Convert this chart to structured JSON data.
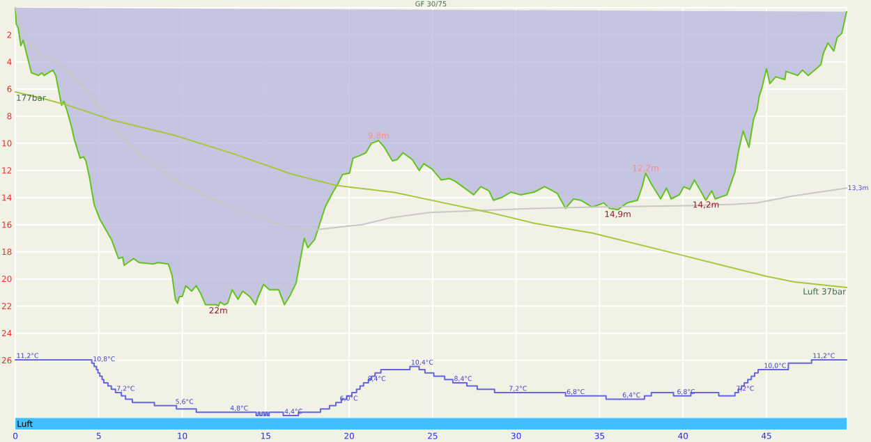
{
  "chart_data": [
    {
      "type": "line",
      "title": "GF 30/75",
      "xlim": [
        0,
        49.8
      ],
      "xticks": [
        0,
        5,
        10,
        15,
        20,
        25,
        30,
        35,
        40,
        45
      ],
      "ylim": [
        31.1,
        0
      ],
      "yticks": [
        2,
        4,
        6,
        8,
        10,
        12,
        14,
        16,
        18,
        20,
        22,
        24,
        26
      ],
      "grid": true,
      "series": [
        {
          "type": "area",
          "color": "#62c41a",
          "x": [
            0,
            0.05,
            0.17,
            0.33,
            0.47,
            0.82,
            0.96,
            1.38,
            1.59,
            1.72,
            2.25,
            2.42,
            2.77,
            2.91,
            3.12,
            3.39,
            3.53,
            3.88,
            4.09,
            4.23,
            4.44,
            4.72,
            5.06,
            5.2,
            5.76,
            6.18,
            6.43,
            6.52,
            7.08,
            7.43,
            8.26,
            8.54,
            9.17,
            9.38,
            9.59,
            9.72,
            9.82,
            10.0,
            10.21,
            10.56,
            10.84,
            11.11,
            11.39,
            11.67,
            12.02,
            12.16,
            12.27,
            12.51,
            12.72,
            12.99,
            13.34,
            13.62,
            14.04,
            14.39,
            14.52,
            14.87,
            15.22,
            15.78,
            16.12,
            16.47,
            16.82,
            17.31,
            17.52,
            17.93,
            18.56,
            18.98,
            19.32,
            19.6,
            20.02,
            20.23,
            20.65,
            21.0,
            21.34,
            21.76,
            22.11,
            22.59,
            22.87,
            23.22,
            23.78,
            24.19,
            24.47,
            24.96,
            25.51,
            26.0,
            26.35,
            26.91,
            27.46,
            27.88,
            28.37,
            28.64,
            29.13,
            29.69,
            30.25,
            31.08,
            31.71,
            32.19,
            32.47,
            32.96,
            33.44,
            33.86,
            34.56,
            35.25,
            35.6,
            36.09,
            36.64,
            37.27,
            37.55,
            37.76,
            38.1,
            38.66,
            39.01,
            39.29,
            39.77,
            40.05,
            40.4,
            40.68,
            41.37,
            41.72,
            41.93,
            42.63,
            43.11,
            43.32,
            43.6,
            43.95,
            44.23,
            44.44,
            44.57,
            44.71,
            44.92,
            45.0,
            45.2,
            45.55,
            46.1,
            46.17,
            46.87,
            47.15,
            47.5,
            47.98,
            48.26,
            48.4,
            48.68,
            49.03,
            49.24,
            49.51,
            49.8
          ],
          "values": [
            0,
            1.2,
            1.5,
            2.8,
            2.4,
            4.1,
            4.8,
            5.0,
            4.8,
            5.0,
            4.6,
            5.0,
            7.2,
            6.9,
            7.7,
            8.9,
            9.7,
            11.1,
            11.0,
            11.3,
            12.5,
            14.5,
            15.6,
            15.9,
            17.1,
            18.5,
            18.4,
            19.0,
            18.5,
            18.8,
            18.9,
            18.8,
            18.9,
            19.7,
            21.5,
            21.8,
            21.3,
            21.3,
            20.5,
            20.9,
            20.5,
            21.1,
            21.9,
            21.9,
            21.9,
            22,
            21.7,
            21.9,
            21.8,
            20.8,
            21.5,
            20.9,
            21.3,
            21.9,
            21.4,
            20.4,
            20.8,
            20.8,
            21.9,
            21.2,
            20.3,
            17.0,
            17.7,
            17.1,
            14.7,
            13.7,
            13.0,
            12.3,
            12.2,
            11.1,
            10.9,
            10.7,
            10.0,
            9.8,
            10.3,
            11.3,
            11.2,
            10.7,
            11.2,
            12.0,
            11.5,
            11.9,
            12.7,
            12.6,
            12.8,
            13.3,
            13.8,
            13.2,
            13.5,
            14.2,
            14.0,
            13.6,
            13.8,
            13.6,
            13.2,
            13.5,
            13.7,
            14.8,
            14.1,
            14.2,
            14.7,
            14.4,
            14.8,
            14.9,
            14.4,
            14.2,
            13.2,
            12.2,
            13.0,
            14.1,
            13.3,
            14.1,
            13.8,
            13.2,
            13.4,
            12.7,
            14.2,
            13.5,
            14.1,
            13.8,
            12.1,
            10.6,
            9.1,
            10.3,
            8.2,
            7.5,
            6.5,
            6.0,
            4.9,
            4.5,
            5.6,
            5.1,
            5.3,
            4.7,
            5.0,
            4.6,
            5.0,
            4.5,
            4.2,
            3.4,
            2.6,
            3.2,
            2.2,
            1.9,
            0.3
          ],
          "value_labels": [
            null,
            null,
            null,
            null,
            null,
            null,
            null,
            null,
            null,
            null,
            null,
            null,
            null,
            null,
            null,
            null,
            null,
            null,
            null,
            null,
            null,
            null,
            null,
            null,
            null,
            null,
            null,
            null,
            null,
            null,
            null,
            null,
            null,
            null,
            null,
            null,
            null,
            null,
            null,
            null,
            null,
            null,
            null,
            null,
            null,
            "22m",
            null,
            null,
            null,
            null,
            null,
            null,
            null,
            null,
            null,
            null,
            null,
            null,
            null,
            null,
            null,
            null,
            null,
            null,
            null,
            null,
            null,
            null,
            null,
            null,
            null,
            null,
            null,
            "9,8m",
            null,
            null,
            null,
            null,
            null,
            null,
            null,
            null,
            null,
            null,
            null,
            null,
            null,
            null,
            null,
            null,
            null,
            null,
            null,
            null,
            null,
            null,
            null,
            null,
            null,
            null,
            null,
            null,
            null,
            "14,9m",
            null,
            null,
            null,
            "12,2m",
            null,
            null,
            null,
            null,
            null,
            null,
            null,
            null,
            "14,2m",
            null,
            null,
            null,
            null,
            null,
            null,
            null,
            null,
            null,
            null,
            null,
            null,
            null,
            null,
            null,
            null,
            null,
            null,
            null,
            null,
            null,
            null,
            null,
            null,
            null,
            null,
            null,
            null
          ]
        },
        {
          "color": "#c9c7c4",
          "x": [
            0,
            0.33,
            0.61,
            1.45,
            2.56,
            3.53,
            4.65,
            5.62,
            6.87,
            8.13,
            9.93,
            12.3,
            15.08,
            16.89,
            17.86,
            19.95,
            20.78,
            22.45,
            24.82,
            26.9,
            31.08,
            34.56,
            40.26,
            43.04,
            44.44,
            46.52,
            49.8
          ],
          "values": [
            0,
            1.5,
            2.2,
            3.4,
            4.1,
            5.1,
            6.7,
            8.4,
            10.1,
            11.5,
            13.0,
            14.4,
            15.7,
            16.3,
            16.4,
            16.1,
            16.0,
            15.5,
            15.1,
            15.0,
            14.8,
            14.7,
            14.6,
            14.5,
            14.4,
            13.9,
            13.3
          ],
          "value_labels": [
            null,
            null,
            null,
            null,
            null,
            null,
            null,
            null,
            null,
            null,
            null,
            null,
            null,
            null,
            null,
            null,
            null,
            null,
            null,
            null,
            null,
            null,
            null,
            null,
            null,
            null,
            "13,3m"
          ]
        }
      ],
      "bands": [
        {
          "axis": "y",
          "from": 30.25,
          "to": 31.1,
          "label": "Luft",
          "color": "#40bfff"
        }
      ]
    },
    {
      "type": "step",
      "color": "#6565e0",
      "xlim": [
        0,
        49.8
      ],
      "ylim": [
        2.7,
        54.2
      ],
      "tick_labels": false,
      "x": [
        0,
        4.58,
        4.72,
        4.86,
        4.95,
        5.06,
        5.2,
        5.3,
        5.55,
        5.75,
        6.0,
        6.35,
        6.6,
        7.01,
        8.33,
        9.52,
        9.65,
        10.84,
        12.8,
        14.43,
        14.55,
        14.65,
        14.78,
        14.9,
        15.0,
        15.1,
        15.2,
        16.05,
        16.96,
        18.28,
        18.82,
        19.2,
        19.37,
        19.53,
        19.85,
        20.16,
        20.44,
        20.65,
        20.86,
        21.04,
        21.15,
        21.34,
        21.55,
        21.9,
        23.64,
        24.19,
        24.54,
        25.07,
        25.72,
        26.21,
        27.05,
        27.67,
        28.71,
        29.5,
        32.96,
        35.39,
        36.3,
        37.69,
        38.1,
        39.43,
        39.57,
        40.47,
        42.14,
        43.11,
        43.32,
        43.5,
        43.67,
        43.88,
        44.09,
        44.29,
        44.5,
        44.78,
        46.31,
        47.7,
        49.8
      ],
      "values": [
        11.2,
        10.8,
        10.4,
        10.0,
        9.6,
        9.2,
        8.8,
        8.4,
        8.0,
        7.6,
        7.2,
        6.8,
        6.4,
        6.0,
        5.6,
        5.6,
        5.2,
        4.8,
        4.8,
        4.4,
        4.8,
        4.4,
        4.8,
        4.4,
        4.8,
        4.4,
        4.8,
        4.4,
        4.8,
        5.2,
        5.6,
        6.0,
        6.0,
        6.4,
        6.8,
        7.2,
        7.6,
        8.0,
        8.4,
        8.4,
        8.8,
        9.2,
        9.6,
        10.0,
        10.4,
        10.0,
        9.6,
        9.2,
        8.8,
        8.4,
        8.0,
        7.6,
        7.2,
        7.2,
        6.8,
        6.4,
        6.4,
        6.8,
        7.2,
        6.8,
        6.8,
        7.2,
        6.8,
        7.2,
        7.6,
        8.0,
        8.4,
        8.8,
        9.2,
        9.6,
        10.0,
        10.0,
        10.8,
        11.2,
        11.2
      ],
      "value_labels": [
        "11,2°C",
        "10,8°C",
        null,
        null,
        null,
        null,
        null,
        null,
        null,
        null,
        "7,2°C",
        null,
        null,
        null,
        null,
        "5,6°C",
        null,
        null,
        "4,8°C",
        null,
        null,
        null,
        null,
        null,
        null,
        null,
        null,
        "4,4°C",
        null,
        null,
        null,
        null,
        "6,0°C",
        null,
        null,
        null,
        null,
        null,
        null,
        "8,4°C",
        null,
        null,
        null,
        null,
        "10,4°C",
        null,
        null,
        null,
        null,
        "8,4°C",
        null,
        null,
        null,
        "7,2°C",
        "6,8°C",
        null,
        "6,4°C",
        null,
        null,
        null,
        "6,8°C",
        null,
        null,
        "7,2°C",
        null,
        null,
        null,
        null,
        null,
        null,
        null,
        "10,0°C",
        null,
        "11,2°C",
        null
      ]
    },
    {
      "type": "line",
      "color": "#a4c83a",
      "xlim": [
        0,
        49.8
      ],
      "ylim": [
        -64.6,
        237.3
      ],
      "tick_labels": false,
      "x": [
        0,
        1.72,
        3.26,
        5.76,
        9.52,
        13.0,
        16.61,
        19.25,
        22.73,
        25.51,
        28.3,
        31.08,
        34.56,
        39.98,
        45.0,
        46.66,
        49.8
      ],
      "values": [
        177,
        172,
        167,
        157,
        146,
        133,
        118,
        110,
        105,
        98,
        91,
        83,
        76,
        60,
        45,
        41,
        37
      ],
      "value_labels": [
        "177bar",
        null,
        null,
        null,
        null,
        null,
        null,
        null,
        null,
        null,
        null,
        null,
        null,
        null,
        null,
        null,
        "Luft 37bar"
      ]
    }
  ]
}
